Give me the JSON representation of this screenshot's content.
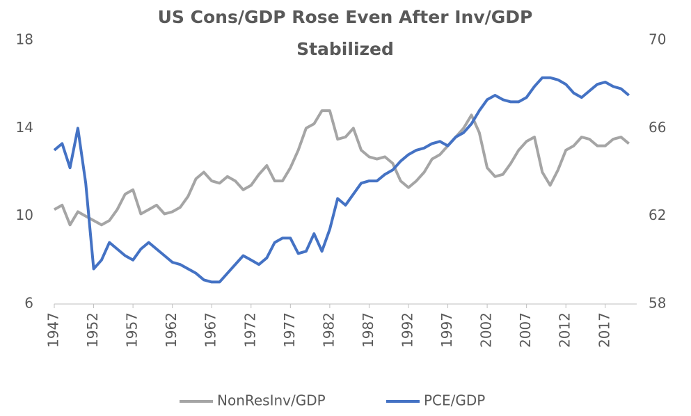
{
  "chart_data": {
    "type": "line",
    "title": [
      "US Cons/GDP Rose Even After Inv/GDP",
      "Stabilized"
    ],
    "x": [
      1947,
      1948,
      1949,
      1950,
      1951,
      1952,
      1953,
      1954,
      1955,
      1956,
      1957,
      1958,
      1959,
      1960,
      1961,
      1962,
      1963,
      1964,
      1965,
      1966,
      1967,
      1968,
      1969,
      1970,
      1971,
      1972,
      1973,
      1974,
      1975,
      1976,
      1977,
      1978,
      1979,
      1980,
      1981,
      1982,
      1983,
      1984,
      1985,
      1986,
      1987,
      1988,
      1989,
      1990,
      1991,
      1992,
      1993,
      1994,
      1995,
      1996,
      1997,
      1998,
      1999,
      2000,
      2001,
      2002,
      2003,
      2004,
      2005,
      2006,
      2007,
      2008,
      2009,
      2010,
      2011,
      2012,
      2013,
      2014,
      2015,
      2016,
      2017,
      2018,
      2019,
      2020
    ],
    "series": [
      {
        "name": "NonResInv/GDP",
        "color": "#a5a5a5",
        "axis": "y",
        "values": [
          10.3,
          10.5,
          9.6,
          10.2,
          10.0,
          9.8,
          9.6,
          9.8,
          10.3,
          11.0,
          11.2,
          10.1,
          10.3,
          10.5,
          10.1,
          10.2,
          10.4,
          10.9,
          11.7,
          12.0,
          11.6,
          11.5,
          11.8,
          11.6,
          11.2,
          11.4,
          11.9,
          12.3,
          11.6,
          11.6,
          12.2,
          13.0,
          14.0,
          14.2,
          14.8,
          14.8,
          13.5,
          13.6,
          14.0,
          13.0,
          12.7,
          12.6,
          12.7,
          12.4,
          11.6,
          11.3,
          11.6,
          12.0,
          12.6,
          12.8,
          13.2,
          13.6,
          14.0,
          14.6,
          13.8,
          12.2,
          11.8,
          11.9,
          12.4,
          13.0,
          13.4,
          13.6,
          12.0,
          11.4,
          12.1,
          13.0,
          13.2,
          13.6,
          13.5,
          13.2,
          13.2,
          13.5,
          13.6,
          13.3
        ]
      },
      {
        "name": "PCE/GDP",
        "color": "#4472c4",
        "axis": "y2",
        "values": [
          65.0,
          65.3,
          64.2,
          66.0,
          63.5,
          59.6,
          60.0,
          60.8,
          60.5,
          60.2,
          60.0,
          60.5,
          60.8,
          60.5,
          60.2,
          59.9,
          59.8,
          59.6,
          59.4,
          59.1,
          59.0,
          59.0,
          59.4,
          59.8,
          60.2,
          60.0,
          59.8,
          60.1,
          60.8,
          61.0,
          61.0,
          60.3,
          60.4,
          61.2,
          60.4,
          61.4,
          62.8,
          62.5,
          63.0,
          63.5,
          63.6,
          63.6,
          63.9,
          64.1,
          64.5,
          64.8,
          65.0,
          65.1,
          65.3,
          65.4,
          65.2,
          65.6,
          65.8,
          66.2,
          66.8,
          67.3,
          67.5,
          67.3,
          67.2,
          67.2,
          67.4,
          67.9,
          68.3,
          68.3,
          68.2,
          68.0,
          67.6,
          67.4,
          67.7,
          68.0,
          68.1,
          67.9,
          67.8,
          67.5
        ]
      }
    ],
    "xlim": [
      1947,
      2021
    ],
    "xticks": [
      1947,
      1952,
      1957,
      1962,
      1967,
      1972,
      1977,
      1982,
      1987,
      1992,
      1997,
      2002,
      2007,
      2012,
      2017
    ],
    "ylim": [
      6,
      18
    ],
    "yticks": [
      6,
      10,
      14,
      18
    ],
    "y2lim": [
      58,
      70
    ],
    "y2ticks": [
      58,
      62,
      66,
      70
    ],
    "grid": false,
    "legend": "bottom"
  }
}
